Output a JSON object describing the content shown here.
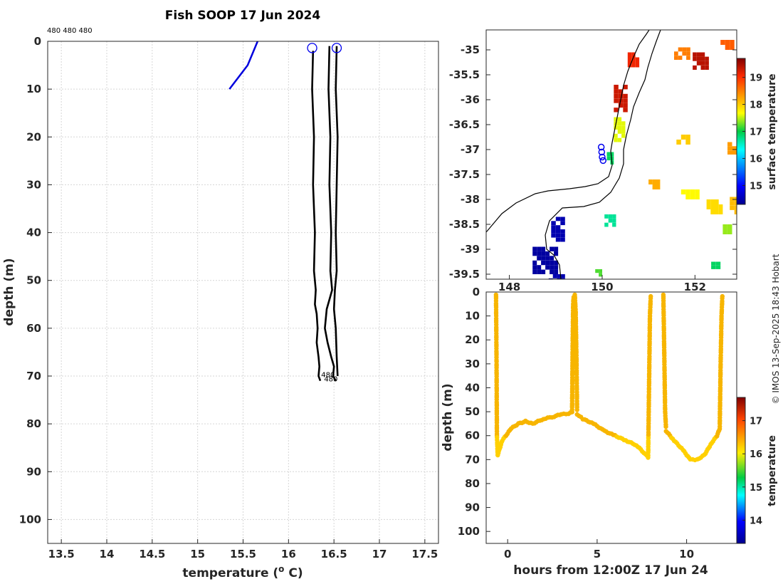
{
  "figure": {
    "title": "Fish SOOP 17 Jun 2024",
    "credit": "© IMOS 13-Sep-2025 18:43 Hobart",
    "profile_ids_top": "480 480 480"
  },
  "chart_data": [
    {
      "id": "profile",
      "type": "line",
      "title": "Fish SOOP 17 Jun 2024",
      "xlabel": "temperature (° C)",
      "ylabel": "depth (m)",
      "xlim": [
        13.35,
        17.65
      ],
      "ylim": [
        0,
        105
      ],
      "y_reversed": true,
      "xticks": [
        13.5,
        14,
        14.5,
        15,
        15.5,
        16,
        16.5,
        17,
        17.5
      ],
      "yticks": [
        0,
        10,
        20,
        30,
        40,
        50,
        60,
        70,
        80,
        90,
        100
      ],
      "grid": true,
      "top_labels": "480 480 480",
      "bottom_labels": [
        "480",
        "480"
      ],
      "series": [
        {
          "name": "reference",
          "color": "#0000dd",
          "x": [
            15.35,
            15.55,
            15.66
          ],
          "y": [
            10,
            5,
            0
          ]
        },
        {
          "name": "cast-1",
          "color": "#000000",
          "x": [
            16.27,
            16.26,
            16.28,
            16.27,
            16.29,
            16.28,
            16.3,
            16.29,
            16.31,
            16.32,
            16.31,
            16.33,
            16.34,
            16.33,
            16.35
          ],
          "y": [
            2,
            10,
            20,
            30,
            40,
            48,
            52,
            55,
            57,
            60,
            63,
            66,
            68,
            70,
            71
          ]
        },
        {
          "name": "cast-2",
          "color": "#000000",
          "x": [
            16.45,
            16.44,
            16.46,
            16.45,
            16.47,
            16.46,
            16.48,
            16.45,
            16.42,
            16.4,
            16.43,
            16.47,
            16.5,
            16.49,
            16.52
          ],
          "y": [
            1,
            10,
            20,
            30,
            40,
            48,
            52,
            54,
            56,
            60,
            63,
            66,
            68,
            70,
            71
          ]
        },
        {
          "name": "cast-3",
          "color": "#000000",
          "x": [
            16.53,
            16.52,
            16.54,
            16.53,
            16.52,
            16.53,
            16.51,
            16.5,
            16.52,
            16.53,
            16.54
          ],
          "y": [
            1,
            10,
            20,
            30,
            40,
            48,
            52,
            56,
            60,
            66,
            70
          ]
        }
      ],
      "markers": [
        {
          "x": 16.26,
          "y": 1.4,
          "color": "#0000ee"
        },
        {
          "x": 16.53,
          "y": 1.4,
          "color": "#0000ee"
        }
      ]
    },
    {
      "id": "map",
      "type": "heatmap",
      "xlim": [
        147.5,
        152.9
      ],
      "ylim": [
        -39.6,
        -34.6
      ],
      "xticks": [
        148,
        150,
        152
      ],
      "yticks": [
        -35,
        -35.5,
        -36,
        -36.5,
        -37,
        -37.5,
        -38,
        -38.5,
        -39,
        -39.5
      ],
      "colorbar": {
        "label": "surface temperature",
        "ticks": [
          15,
          16,
          17,
          18,
          19
        ],
        "range": [
          14.3,
          19.7
        ]
      },
      "track": [
        {
          "lon": 149.98,
          "lat": -36.95
        },
        {
          "lon": 149.99,
          "lat": -37.05
        },
        {
          "lon": 150.0,
          "lat": -37.15
        },
        {
          "lon": 150.02,
          "lat": -37.22
        }
      ],
      "sst_patches": [
        {
          "lon": 148.5,
          "lat": -38.95,
          "w": 0.55,
          "h": 0.55,
          "t": 14.4
        },
        {
          "lon": 148.9,
          "lat": -38.35,
          "w": 0.3,
          "h": 0.5,
          "t": 14.5
        },
        {
          "lon": 148.85,
          "lat": -39.5,
          "w": 0.35,
          "h": 0.25,
          "t": 14.5
        },
        {
          "lon": 150.25,
          "lat": -36.35,
          "w": 0.25,
          "h": 0.5,
          "t": 17.6
        },
        {
          "lon": 150.25,
          "lat": -35.7,
          "w": 0.3,
          "h": 0.55,
          "t": 19.3
        },
        {
          "lon": 150.55,
          "lat": -35.05,
          "w": 0.25,
          "h": 0.3,
          "t": 19.1
        },
        {
          "lon": 151.55,
          "lat": -34.95,
          "w": 0.35,
          "h": 0.25,
          "t": 18.5
        },
        {
          "lon": 151.95,
          "lat": -35.05,
          "w": 0.35,
          "h": 0.35,
          "t": 19.4
        },
        {
          "lon": 152.55,
          "lat": -34.8,
          "w": 0.3,
          "h": 0.2,
          "t": 18.7
        },
        {
          "lon": 151.6,
          "lat": -36.7,
          "w": 0.3,
          "h": 0.2,
          "t": 18.0
        },
        {
          "lon": 152.7,
          "lat": -36.85,
          "w": 0.2,
          "h": 0.25,
          "t": 18.3
        },
        {
          "lon": 150.05,
          "lat": -38.3,
          "w": 0.25,
          "h": 0.25,
          "t": 16.7
        },
        {
          "lon": 149.85,
          "lat": -39.4,
          "w": 0.15,
          "h": 0.15,
          "t": 17.2
        },
        {
          "lon": 150.1,
          "lat": -37.05,
          "w": 0.15,
          "h": 0.25,
          "t": 16.9
        },
        {
          "lon": 151.7,
          "lat": -37.8,
          "w": 0.4,
          "h": 0.2,
          "t": 17.7
        },
        {
          "lon": 152.25,
          "lat": -38.0,
          "w": 0.35,
          "h": 0.3,
          "t": 17.9
        },
        {
          "lon": 152.6,
          "lat": -38.5,
          "w": 0.2,
          "h": 0.2,
          "t": 17.4
        },
        {
          "lon": 152.75,
          "lat": -37.95,
          "w": 0.2,
          "h": 0.35,
          "t": 18.1
        },
        {
          "lon": 152.35,
          "lat": -39.25,
          "w": 0.2,
          "h": 0.15,
          "t": 16.9
        },
        {
          "lon": 151.0,
          "lat": -37.6,
          "w": 0.25,
          "h": 0.2,
          "t": 18.2
        }
      ]
    },
    {
      "id": "timeseries",
      "type": "scatter",
      "xlabel": "hours from 12:00Z 17 Jun 24",
      "ylabel": "depth (m)",
      "xlim": [
        -1.2,
        12.8
      ],
      "ylim": [
        0,
        105
      ],
      "y_reversed": true,
      "xticks": [
        0,
        5,
        10
      ],
      "yticks": [
        0,
        10,
        20,
        30,
        40,
        50,
        60,
        70,
        80,
        90,
        100
      ],
      "colorbar": {
        "label": "temperature",
        "ticks": [
          14,
          15,
          16,
          17
        ],
        "range": [
          13.3,
          17.7
        ]
      },
      "segments": [
        {
          "t": [
            -0.65,
            -0.62,
            -0.6,
            -0.55
          ],
          "d": [
            1,
            30,
            60,
            69
          ]
        },
        {
          "t": [
            -0.55,
            -0.3,
            0.2,
            0.6,
            1.0,
            1.4,
            2.0,
            2.6,
            3.0,
            3.4,
            3.6
          ],
          "d": [
            68,
            62,
            57,
            55,
            54,
            55,
            53,
            52,
            51,
            51,
            50
          ]
        },
        {
          "t": [
            3.6,
            3.63,
            3.66,
            3.7
          ],
          "d": [
            50,
            25,
            5,
            1
          ]
        },
        {
          "t": [
            3.75,
            3.8,
            3.85,
            3.88
          ],
          "d": [
            1,
            8,
            30,
            50
          ]
        },
        {
          "t": [
            3.88,
            4.2,
            4.8,
            5.4,
            6.0,
            6.6,
            7.2,
            7.6,
            7.85
          ],
          "d": [
            51,
            53,
            55,
            58,
            60,
            62,
            64,
            67,
            69
          ]
        },
        {
          "t": [
            7.85,
            7.9,
            7.95,
            8.0
          ],
          "d": [
            69,
            40,
            10,
            1
          ]
        },
        {
          "t": [
            8.7,
            8.75,
            8.8,
            8.85
          ],
          "d": [
            1,
            25,
            50,
            57
          ]
        },
        {
          "t": [
            8.85,
            9.3,
            9.8,
            10.2,
            10.6,
            11.0,
            11.4,
            11.7,
            11.85
          ],
          "d": [
            58,
            62,
            66,
            70,
            70,
            68,
            63,
            60,
            57
          ]
        },
        {
          "t": [
            11.85,
            11.9,
            11.95,
            12.0
          ],
          "d": [
            57,
            30,
            10,
            1
          ]
        }
      ]
    }
  ]
}
